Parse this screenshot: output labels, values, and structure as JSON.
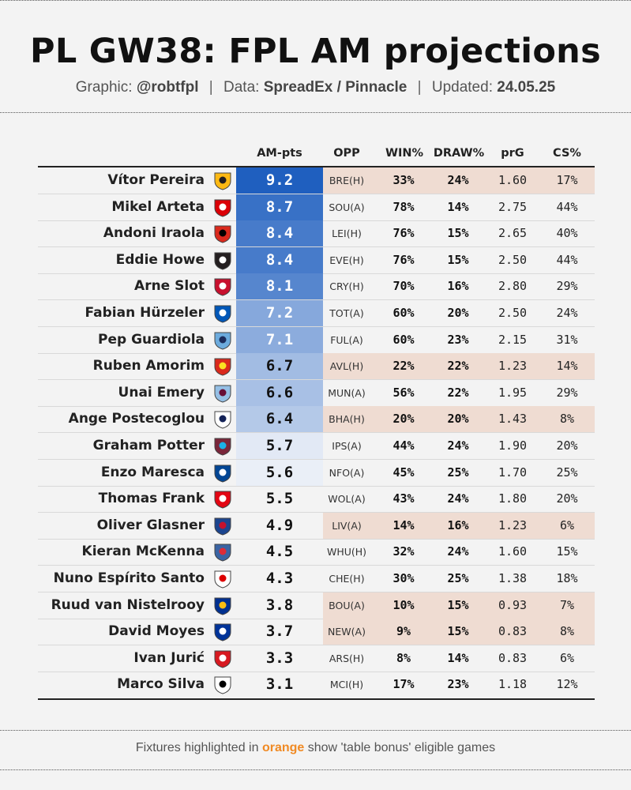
{
  "header": {
    "title": "PL GW38: FPL AM projections",
    "graphic_label": "Graphic:",
    "graphic_value": "@robtfpl",
    "data_label": "Data:",
    "data_value": "SpreadEx / Pinnacle",
    "updated_label": "Updated:",
    "updated_value": "24.05.25",
    "separator": "|"
  },
  "footer": {
    "pre": "Fixtures highlighted in",
    "highlight": "orange",
    "post": "show 'table bonus' eligible games"
  },
  "colors": {
    "background": "#f3f3f3",
    "orange_highlight": "#efdcd2",
    "orange_text": "#f08a24",
    "pts_dark": "#1f5fbf",
    "pts_light": "#e6ecf7"
  },
  "chart_data": {
    "type": "table",
    "title": "PL GW38: FPL AM projections",
    "columns": [
      "",
      "AM-pts",
      "OPP",
      "WIN%",
      "DRAW%",
      "prG",
      "CS%"
    ],
    "rows": [
      {
        "manager": "Vítor Pereira",
        "team_badge": "wolves-badge-icon",
        "am_pts": "9.2",
        "opp": "BRE(H)",
        "win": "33%",
        "draw": "24%",
        "prg": "1.60",
        "cs": "17%",
        "highlighted": true
      },
      {
        "manager": "Mikel Arteta",
        "team_badge": "arsenal-badge-icon",
        "am_pts": "8.7",
        "opp": "SOU(A)",
        "win": "78%",
        "draw": "14%",
        "prg": "2.75",
        "cs": "44%",
        "highlighted": false
      },
      {
        "manager": "Andoni Iraola",
        "team_badge": "bournemouth-badge-icon",
        "am_pts": "8.4",
        "opp": "LEI(H)",
        "win": "76%",
        "draw": "15%",
        "prg": "2.65",
        "cs": "40%",
        "highlighted": false
      },
      {
        "manager": "Eddie Howe",
        "team_badge": "newcastle-badge-icon",
        "am_pts": "8.4",
        "opp": "EVE(H)",
        "win": "76%",
        "draw": "15%",
        "prg": "2.50",
        "cs": "44%",
        "highlighted": false
      },
      {
        "manager": "Arne Slot",
        "team_badge": "liverpool-badge-icon",
        "am_pts": "8.1",
        "opp": "CRY(H)",
        "win": "70%",
        "draw": "16%",
        "prg": "2.80",
        "cs": "29%",
        "highlighted": false
      },
      {
        "manager": "Fabian Hürzeler",
        "team_badge": "brighton-badge-icon",
        "am_pts": "7.2",
        "opp": "TOT(A)",
        "win": "60%",
        "draw": "20%",
        "prg": "2.50",
        "cs": "24%",
        "highlighted": false
      },
      {
        "manager": "Pep Guardiola",
        "team_badge": "man-city-badge-icon",
        "am_pts": "7.1",
        "opp": "FUL(A)",
        "win": "60%",
        "draw": "23%",
        "prg": "2.15",
        "cs": "31%",
        "highlighted": false
      },
      {
        "manager": "Ruben Amorim",
        "team_badge": "man-utd-badge-icon",
        "am_pts": "6.7",
        "opp": "AVL(H)",
        "win": "22%",
        "draw": "22%",
        "prg": "1.23",
        "cs": "14%",
        "highlighted": true
      },
      {
        "manager": "Unai Emery",
        "team_badge": "aston-villa-badge-icon",
        "am_pts": "6.6",
        "opp": "MUN(A)",
        "win": "56%",
        "draw": "22%",
        "prg": "1.95",
        "cs": "29%",
        "highlighted": false
      },
      {
        "manager": "Ange Postecoglou",
        "team_badge": "tottenham-badge-icon",
        "am_pts": "6.4",
        "opp": "BHA(H)",
        "win": "20%",
        "draw": "20%",
        "prg": "1.43",
        "cs": "8%",
        "highlighted": true
      },
      {
        "manager": "Graham Potter",
        "team_badge": "west-ham-badge-icon",
        "am_pts": "5.7",
        "opp": "IPS(A)",
        "win": "44%",
        "draw": "24%",
        "prg": "1.90",
        "cs": "20%",
        "highlighted": false
      },
      {
        "manager": "Enzo Maresca",
        "team_badge": "chelsea-badge-icon",
        "am_pts": "5.6",
        "opp": "NFO(A)",
        "win": "45%",
        "draw": "25%",
        "prg": "1.70",
        "cs": "25%",
        "highlighted": false
      },
      {
        "manager": "Thomas Frank",
        "team_badge": "brentford-badge-icon",
        "am_pts": "5.5",
        "opp": "WOL(A)",
        "win": "43%",
        "draw": "24%",
        "prg": "1.80",
        "cs": "20%",
        "highlighted": false
      },
      {
        "manager": "Oliver Glasner",
        "team_badge": "crystal-palace-badge-icon",
        "am_pts": "4.9",
        "opp": "LIV(A)",
        "win": "14%",
        "draw": "16%",
        "prg": "1.23",
        "cs": "6%",
        "highlighted": true
      },
      {
        "manager": "Kieran McKenna",
        "team_badge": "ipswich-badge-icon",
        "am_pts": "4.5",
        "opp": "WHU(H)",
        "win": "32%",
        "draw": "24%",
        "prg": "1.60",
        "cs": "15%",
        "highlighted": false
      },
      {
        "manager": "Nuno Espírito Santo",
        "team_badge": "nottingham-forest-badge-icon",
        "am_pts": "4.3",
        "opp": "CHE(H)",
        "win": "30%",
        "draw": "25%",
        "prg": "1.38",
        "cs": "18%",
        "highlighted": false
      },
      {
        "manager": "Ruud van Nistelrooy",
        "team_badge": "leicester-badge-icon",
        "am_pts": "3.8",
        "opp": "BOU(A)",
        "win": "10%",
        "draw": "15%",
        "prg": "0.93",
        "cs": "7%",
        "highlighted": true
      },
      {
        "manager": "David Moyes",
        "team_badge": "everton-badge-icon",
        "am_pts": "3.7",
        "opp": "NEW(A)",
        "win": "9%",
        "draw": "15%",
        "prg": "0.83",
        "cs": "8%",
        "highlighted": true
      },
      {
        "manager": "Ivan Jurić",
        "team_badge": "southampton-badge-icon",
        "am_pts": "3.3",
        "opp": "ARS(H)",
        "win": "8%",
        "draw": "14%",
        "prg": "0.83",
        "cs": "6%",
        "highlighted": false
      },
      {
        "manager": "Marco Silva",
        "team_badge": "fulham-badge-icon",
        "am_pts": "3.1",
        "opp": "MCI(H)",
        "win": "17%",
        "draw": "23%",
        "prg": "1.18",
        "cs": "12%",
        "highlighted": false
      }
    ]
  }
}
